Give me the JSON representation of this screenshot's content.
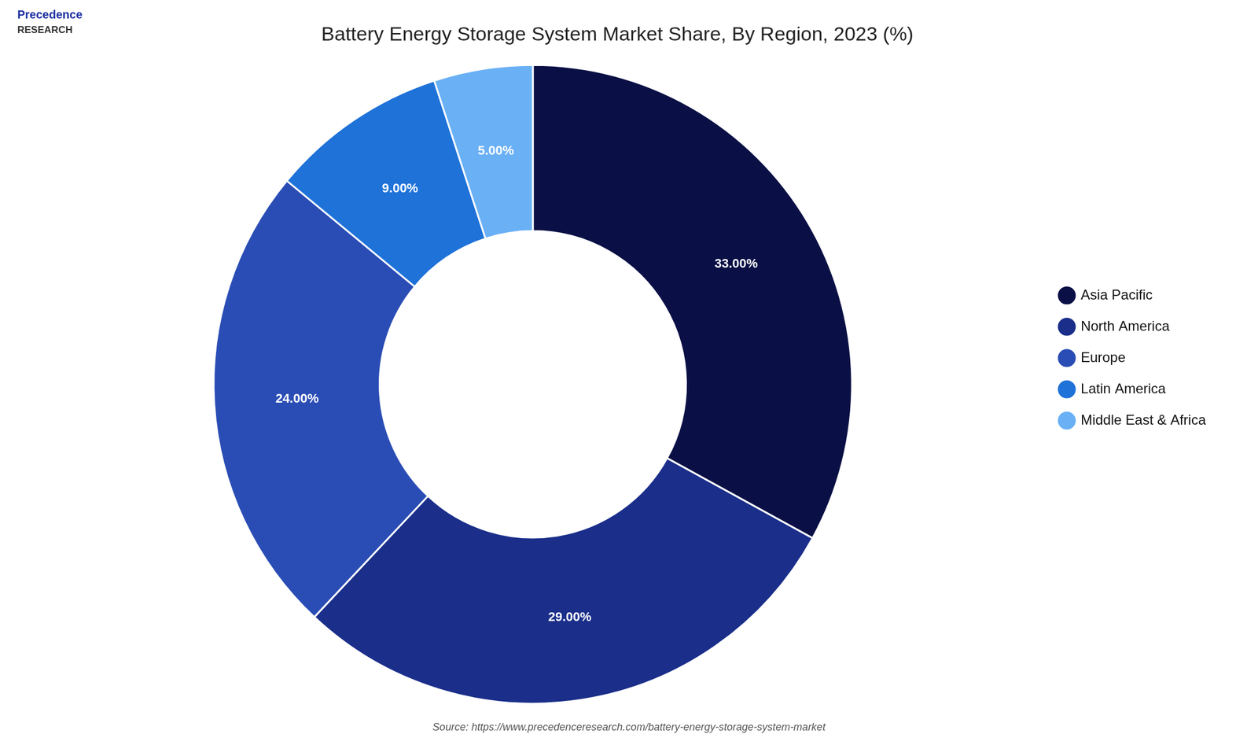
{
  "chart_data": {
    "type": "doughnut",
    "title": "Battery Energy Storage System Market Share, By Region, 2023 (%)",
    "categories": [
      "Asia Pacific",
      "North America",
      "Europe",
      "Latin America",
      "Middle East & Africa"
    ],
    "values": [
      33.0,
      29.0,
      24.0,
      9.0,
      5.0
    ],
    "value_labels": [
      "33.00%",
      "29.00%",
      "24.00%",
      "9.00%",
      "5.00%"
    ],
    "colors": [
      "#0a1045",
      "#1a2e8a",
      "#2a4db5",
      "#1e72d8",
      "#6ab0f5"
    ],
    "data_labels": true,
    "legend": "right",
    "annotations": [
      "Precedence",
      "RESEARCH",
      "Source: https://www.precedenceresearch.com/battery-energy-storage-system-market"
    ]
  }
}
